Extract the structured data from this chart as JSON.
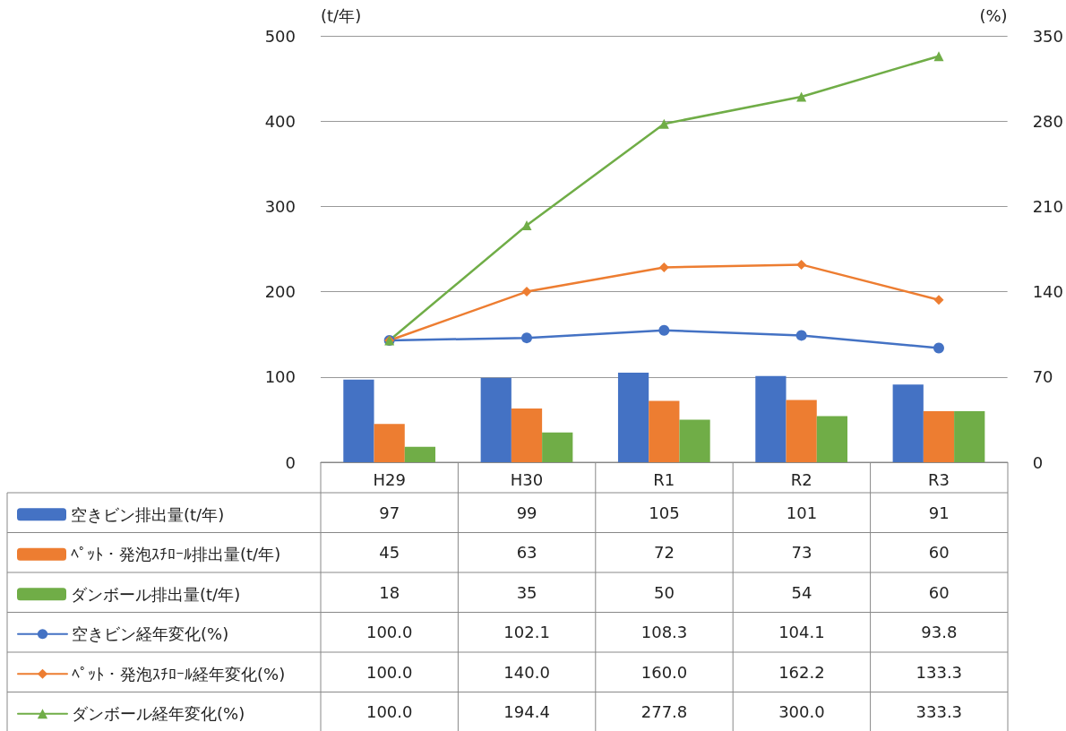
{
  "chart_data": {
    "type": "bar",
    "categories": [
      "H29",
      "H30",
      "R1",
      "R2",
      "R3"
    ],
    "ylabel": "(t/年)",
    "y2label": "(%)",
    "ylim": [
      0,
      500
    ],
    "yticks": [
      0,
      100,
      200,
      300,
      400,
      500
    ],
    "y2lim": [
      0,
      350
    ],
    "y2ticks": [
      0,
      70,
      140,
      210,
      280,
      350
    ],
    "grid": "y",
    "legend": "bottom left",
    "series": [
      {
        "name": "空きビン排出量(t/年)",
        "color": "#4472c4",
        "values": [
          97,
          99,
          105,
          101,
          91
        ],
        "value_labels": [
          "97",
          "99",
          "105",
          "101",
          "91"
        ]
      },
      {
        "name": "ﾍﾟｯﾄ・発泡ｽﾁﾛｰﾙ排出量(t/年)",
        "color": "#ed7d31",
        "values": [
          45,
          63,
          72,
          73,
          60
        ],
        "value_labels": [
          "45",
          "63",
          "72",
          "73",
          "60"
        ]
      },
      {
        "name": "ダンボール排出量(t/年)",
        "color": "#70ad47",
        "values": [
          18,
          35,
          50,
          54,
          60
        ],
        "value_labels": [
          "18",
          "35",
          "50",
          "54",
          "60"
        ]
      },
      {
        "name": "空きビン経年変化(%)",
        "type": "line",
        "axis": "y2",
        "marker": "circle",
        "color": "#4472c4",
        "values": [
          100.0,
          102.1,
          108.3,
          104.1,
          93.8
        ],
        "value_labels": [
          "100.0",
          "102.1",
          "108.3",
          "104.1",
          "93.8"
        ]
      },
      {
        "name": "ﾍﾟｯﾄ・発泡ｽﾁﾛｰﾙ経年変化(%)",
        "type": "line",
        "axis": "y2",
        "marker": "diamond",
        "color": "#ed7d31",
        "values": [
          100.0,
          140.0,
          160.0,
          162.2,
          133.3
        ],
        "value_labels": [
          "100.0",
          "140.0",
          "160.0",
          "162.2",
          "133.3"
        ]
      },
      {
        "name": "ダンボール経年変化(%)",
        "type": "line",
        "axis": "y2",
        "marker": "triangle",
        "color": "#70ad47",
        "values": [
          100.0,
          194.4,
          277.8,
          300.0,
          333.3
        ],
        "value_labels": [
          "100.0",
          "194.4",
          "277.8",
          "300.0",
          "333.3"
        ]
      }
    ]
  }
}
